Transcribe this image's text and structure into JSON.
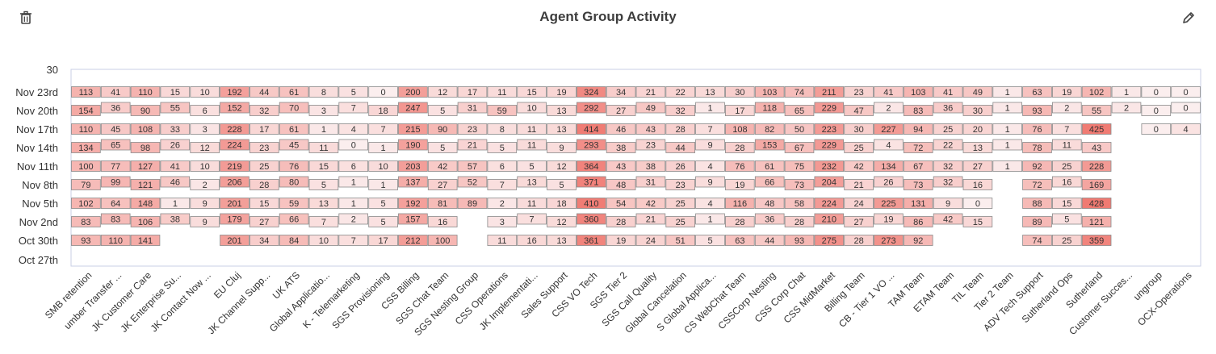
{
  "header": {
    "title": "Agent Group Activity",
    "delete_icon": "trash-icon",
    "edit_icon": "pencil-icon"
  },
  "colors": {
    "cell_fill_low": "#fbeeee",
    "cell_fill_high": "#f07a72",
    "cell_stroke": "#8a8a8a",
    "plot_border": "#c9cfe6"
  },
  "chart_data": {
    "type": "heatmap",
    "title": "Agent Group Activity",
    "y_axis_top_label": "30",
    "y_categories": [
      "Nov 23rd",
      "Nov 20th",
      "Nov 17th",
      "Nov 14th",
      "Nov 11th",
      "Nov 8th",
      "Nov 5th",
      "Nov 2nd",
      "Oct 30th",
      "Oct 27th"
    ],
    "x_categories": [
      "SMB retention",
      "umber Transfer ...",
      "JK Customer Care",
      "JK Enterprise Su...",
      "JK Contact Now ...",
      "EU Cluj",
      "JK Channel Supp...",
      "UK ATS",
      "Global Applicatio...",
      "K - Telemarketing",
      "SGS Provisioning",
      "CSS Billing",
      "SGS Chat Team",
      "SGS Nesting Group",
      "CSS Operations",
      "JK Implementati...",
      "Sales Support",
      "CSS VO Tech",
      "SGS Tier 2",
      "SGS Call Quality",
      "Global Cancelation",
      "S Global Applica...",
      "CS WebChat Team",
      "CSSCorp Nesting",
      "CSS Corp Chat",
      "CSS MidMarket",
      "Billing Team",
      "CB - Tier 1 VO ...",
      "TAM Team",
      "ETAM Team",
      "TIL Team",
      "Tier 2 Team",
      "ADV Tech Support",
      "Sutherland Ops",
      "Sutherland",
      "Customer Succes...",
      "ungroup",
      "OCX-Operations"
    ],
    "values": [
      [
        113,
        154,
        110,
        134,
        100,
        79,
        102,
        83,
        93
      ],
      [
        41,
        36,
        45,
        65,
        77,
        99,
        64,
        83,
        110
      ],
      [
        110,
        90,
        108,
        98,
        127,
        121,
        148,
        106,
        141
      ],
      [
        15,
        55,
        33,
        26,
        41,
        46,
        1,
        38
      ],
      [
        10,
        6,
        3,
        12,
        10,
        2,
        9,
        9
      ],
      [
        192,
        152,
        228,
        224,
        219,
        206,
        201,
        179,
        201
      ],
      [
        44,
        32,
        17,
        23,
        25,
        28,
        15,
        27,
        34
      ],
      [
        61,
        70,
        61,
        45,
        76,
        80,
        59,
        66,
        84
      ],
      [
        8,
        3,
        1,
        11,
        15,
        5,
        13,
        7,
        10
      ],
      [
        5,
        7,
        4,
        0,
        6,
        1,
        1,
        2,
        7
      ],
      [
        0,
        18,
        7,
        1,
        10,
        1,
        5,
        5,
        17
      ],
      [
        200,
        247,
        215,
        190,
        203,
        137,
        192,
        157,
        212
      ],
      [
        12,
        5,
        90,
        5,
        42,
        27,
        81,
        16,
        100
      ],
      [
        17,
        31,
        23,
        21,
        57,
        52,
        89
      ],
      [
        11,
        59,
        8,
        5,
        6,
        7,
        2,
        3,
        11
      ],
      [
        15,
        10,
        11,
        11,
        5,
        13,
        11,
        7,
        16
      ],
      [
        19,
        13,
        13,
        9,
        12,
        5,
        18,
        12,
        13
      ],
      [
        324,
        292,
        414,
        293,
        364,
        371,
        410,
        360,
        361
      ],
      [
        34,
        27,
        46,
        38,
        43,
        48,
        54,
        28,
        19
      ],
      [
        21,
        49,
        43,
        23,
        38,
        31,
        42,
        21,
        24
      ],
      [
        22,
        32,
        28,
        44,
        26,
        23,
        25,
        25,
        51
      ],
      [
        13,
        1,
        7,
        9,
        4,
        9,
        4,
        1,
        5
      ],
      [
        30,
        17,
        108,
        28,
        76,
        19,
        116,
        28,
        63
      ],
      [
        103,
        118,
        82,
        153,
        61,
        66,
        48,
        36,
        44
      ],
      [
        74,
        65,
        50,
        67,
        75,
        73,
        58,
        28,
        93
      ],
      [
        211,
        229,
        223,
        229,
        232,
        204,
        224,
        210,
        275
      ],
      [
        23,
        47,
        30,
        25,
        42,
        21,
        24,
        27,
        28
      ],
      [
        41,
        2,
        227,
        4,
        134,
        26,
        225,
        19,
        273
      ],
      [
        103,
        83,
        94,
        72,
        67,
        73,
        131,
        86,
        92
      ],
      [
        41,
        36,
        25,
        22,
        32,
        32,
        9,
        42
      ],
      [
        49,
        30,
        20,
        13,
        27,
        16,
        0,
        15
      ],
      [
        1,
        1,
        1,
        1,
        1
      ],
      [
        63,
        93,
        76,
        78,
        92,
        72,
        88,
        89,
        74
      ],
      [
        19,
        2,
        7,
        11,
        25,
        16,
        15,
        5,
        25
      ],
      [
        102,
        55,
        425,
        43,
        228,
        169,
        428,
        121,
        359
      ],
      [
        1,
        2
      ],
      [
        0,
        0,
        0
      ],
      [
        0,
        0,
        4
      ]
    ],
    "value_range": [
      0,
      430
    ],
    "grid": false
  }
}
